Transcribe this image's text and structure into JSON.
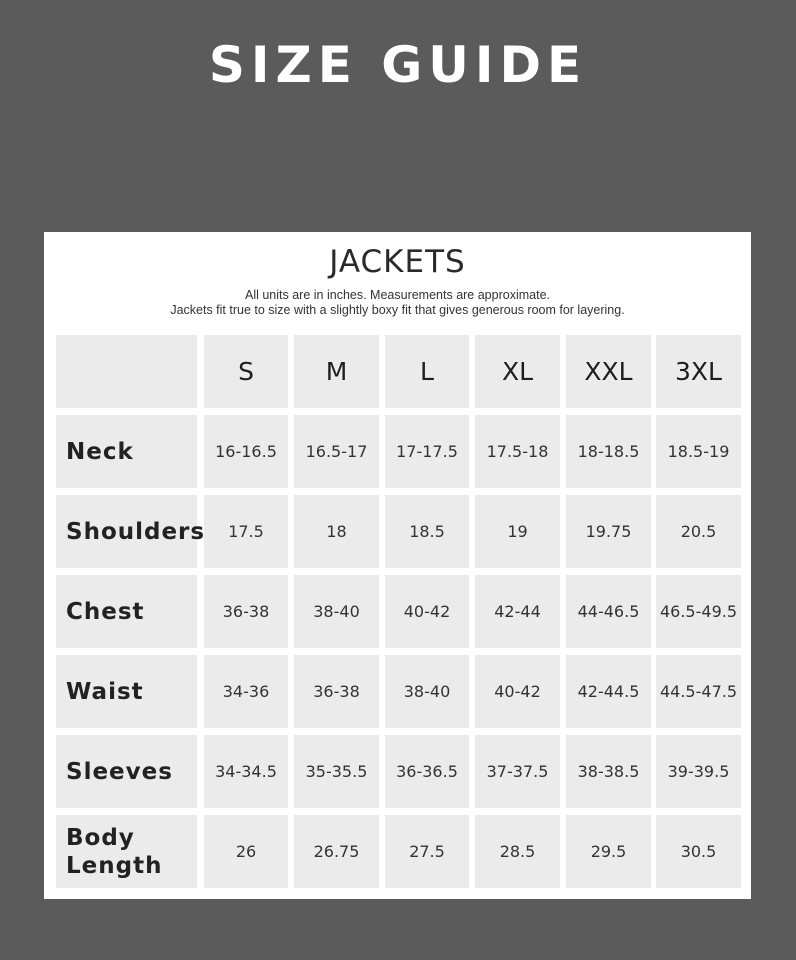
{
  "page_title": "SIZE GUIDE",
  "panel": {
    "heading": "JACKETS",
    "notes": [
      "All units are in inches. Measurements are approximate.",
      "Jackets fit true to size with a slightly boxy fit that gives generous room for layering."
    ]
  },
  "table": {
    "sizes": [
      "S",
      "M",
      "L",
      "XL",
      "XXL",
      "3XL"
    ],
    "rows": [
      {
        "label": "Neck",
        "values": [
          "16-16.5",
          "16.5-17",
          "17-17.5",
          "17.5-18",
          "18-18.5",
          "18.5-19"
        ]
      },
      {
        "label": "Shoulders",
        "values": [
          "17.5",
          "18",
          "18.5",
          "19",
          "19.75",
          "20.5"
        ]
      },
      {
        "label": "Chest",
        "values": [
          "36-38",
          "38-40",
          "40-42",
          "42-44",
          "44-46.5",
          "46.5-49.5"
        ]
      },
      {
        "label": "Waist",
        "values": [
          "34-36",
          "36-38",
          "38-40",
          "40-42",
          "42-44.5",
          "44.5-47.5"
        ]
      },
      {
        "label": "Sleeves",
        "values": [
          "34-34.5",
          "35-35.5",
          "36-36.5",
          "37-37.5",
          "38-38.5",
          "39-39.5"
        ]
      },
      {
        "label": "Body Length",
        "values": [
          "26",
          "26.75",
          "27.5",
          "28.5",
          "29.5",
          "30.5"
        ]
      }
    ]
  }
}
